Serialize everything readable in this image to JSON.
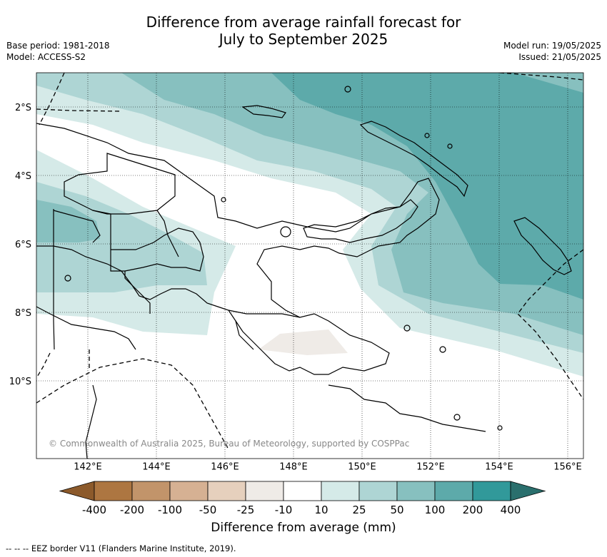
{
  "title": {
    "line1": "Difference from average rainfall forecast for",
    "line2": "July to September 2025"
  },
  "meta": {
    "base_period": "Base period: 1981-2018",
    "model": "Model: ACCESS-S2",
    "model_run": "Model run: 19/05/2025",
    "issued": "Issued: 21/05/2025"
  },
  "map": {
    "lat_labels": [
      "2°S",
      "4°S",
      "6°S",
      "8°S",
      "10°S"
    ],
    "lon_labels": [
      "142°E",
      "144°E",
      "146°E",
      "148°E",
      "150°E",
      "152°E",
      "154°E",
      "156°E"
    ],
    "copyright": "© Commonwealth of Australia 2025, Bureau of Meteorology, supported by COSPPac",
    "land_color": "#000000",
    "eez_note": "--  --  -- EEZ border V11 (Flanders Marine Institute, 2019)."
  },
  "colorbar": {
    "title": "Difference from average (mm)",
    "ticks": [
      "-400",
      "-200",
      "-100",
      "-50",
      "-25",
      "-10",
      "10",
      "25",
      "50",
      "100",
      "200",
      "400"
    ],
    "colors": [
      "#8c5a2b",
      "#ad7641",
      "#c2946a",
      "#d6b193",
      "#e6d0bd",
      "#efebe7",
      "#ffffff",
      "#d5eae8",
      "#aed5d4",
      "#87c0bf",
      "#5daaaa",
      "#31999a",
      "#2a6f6d"
    ]
  }
}
